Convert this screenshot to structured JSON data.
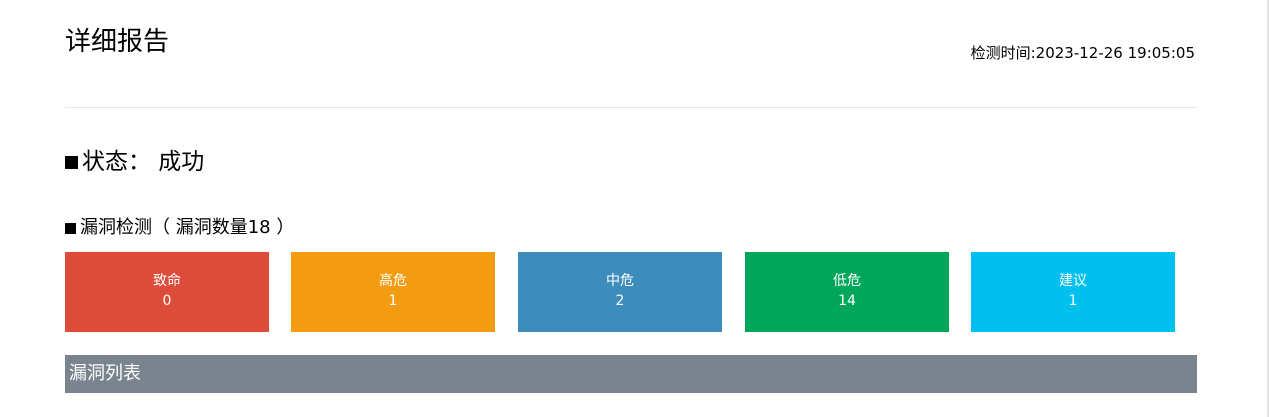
{
  "report": {
    "title": "详细报告",
    "check_time": "检测时间:2023-12-26 19:05:05"
  },
  "status": {
    "text": "状态： 成功"
  },
  "vuln_section": {
    "heading": "漏洞检测（ 漏洞数量18 ）"
  },
  "severity_cards": [
    {
      "label": "致命",
      "count": "0",
      "color": "#dd4b39"
    },
    {
      "label": "高危",
      "count": "1",
      "color": "#f39c12"
    },
    {
      "label": "中危",
      "count": "2",
      "color": "#3c8dbc"
    },
    {
      "label": "低危",
      "count": "14",
      "color": "#00a65a"
    },
    {
      "label": "建议",
      "count": "1",
      "color": "#00c0ef"
    }
  ],
  "vuln_list": {
    "header": "漏洞列表",
    "header_color": "#79848f"
  }
}
